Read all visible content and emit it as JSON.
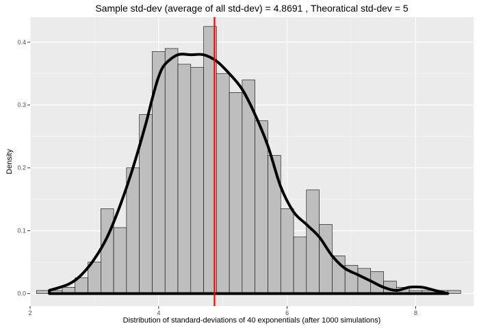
{
  "chart_data": {
    "type": "bar",
    "title": "Sample std-dev (average of all std-dev) =  4.8691 , Theoratical std-dev =  5",
    "xlabel": "Distribution of standard-deviations of 40 exponentials (after 1000 simulations)",
    "ylabel": "Density",
    "xlim": [
      2.0,
      8.9
    ],
    "ylim": [
      -0.02,
      0.44
    ],
    "x_ticks": [
      2,
      4,
      6,
      8
    ],
    "x_tick_labels": [
      "2",
      "4",
      "6",
      "8"
    ],
    "y_ticks": [
      0.0,
      0.1,
      0.2,
      0.3,
      0.4
    ],
    "y_tick_labels": [
      "0.0",
      "0.1",
      "0.2",
      "0.3",
      "0.4"
    ],
    "grid": true,
    "background": "#ebebeb",
    "bar_fill": "#bebebe",
    "bar_stroke": "#000000",
    "vline_color": "#ff0000",
    "curve_color": "#000000",
    "bin_width": 0.2,
    "bins": [
      {
        "x0": 2.1,
        "x1": 2.3,
        "density": 0.005
      },
      {
        "x0": 2.3,
        "x1": 2.5,
        "density": 0.005
      },
      {
        "x0": 2.5,
        "x1": 2.7,
        "density": 0.01
      },
      {
        "x0": 2.7,
        "x1": 2.9,
        "density": 0.025
      },
      {
        "x0": 2.9,
        "x1": 3.1,
        "density": 0.05
      },
      {
        "x0": 3.1,
        "x1": 3.3,
        "density": 0.135
      },
      {
        "x0": 3.3,
        "x1": 3.5,
        "density": 0.105
      },
      {
        "x0": 3.5,
        "x1": 3.7,
        "density": 0.2
      },
      {
        "x0": 3.7,
        "x1": 3.9,
        "density": 0.285
      },
      {
        "x0": 3.9,
        "x1": 4.1,
        "density": 0.385
      },
      {
        "x0": 4.1,
        "x1": 4.3,
        "density": 0.39
      },
      {
        "x0": 4.3,
        "x1": 4.5,
        "density": 0.365
      },
      {
        "x0": 4.5,
        "x1": 4.7,
        "density": 0.36
      },
      {
        "x0": 4.7,
        "x1": 4.9,
        "density": 0.425
      },
      {
        "x0": 4.9,
        "x1": 5.1,
        "density": 0.35
      },
      {
        "x0": 5.1,
        "x1": 5.3,
        "density": 0.32
      },
      {
        "x0": 5.3,
        "x1": 5.5,
        "density": 0.34
      },
      {
        "x0": 5.5,
        "x1": 5.7,
        "density": 0.275
      },
      {
        "x0": 5.7,
        "x1": 5.9,
        "density": 0.22
      },
      {
        "x0": 5.9,
        "x1": 6.1,
        "density": 0.135
      },
      {
        "x0": 6.1,
        "x1": 6.3,
        "density": 0.09
      },
      {
        "x0": 6.3,
        "x1": 6.5,
        "density": 0.165
      },
      {
        "x0": 6.5,
        "x1": 6.7,
        "density": 0.11
      },
      {
        "x0": 6.7,
        "x1": 6.9,
        "density": 0.06
      },
      {
        "x0": 6.9,
        "x1": 7.1,
        "density": 0.045
      },
      {
        "x0": 7.1,
        "x1": 7.3,
        "density": 0.04
      },
      {
        "x0": 7.3,
        "x1": 7.5,
        "density": 0.035
      },
      {
        "x0": 7.5,
        "x1": 7.7,
        "density": 0.02
      },
      {
        "x0": 7.7,
        "x1": 7.9,
        "density": 0.01
      },
      {
        "x0": 7.9,
        "x1": 8.1,
        "density": 0.005
      },
      {
        "x0": 8.1,
        "x1": 8.3,
        "density": 0.005
      },
      {
        "x0": 8.3,
        "x1": 8.5,
        "density": 0.005
      },
      {
        "x0": 8.5,
        "x1": 8.7,
        "density": 0.005
      }
    ],
    "density_curve": {
      "x": [
        2.3,
        2.6,
        2.8,
        3.0,
        3.2,
        3.4,
        3.6,
        3.8,
        3.9,
        4.0,
        4.1,
        4.3,
        4.5,
        4.7,
        4.9,
        5.1,
        5.3,
        5.5,
        5.7,
        5.9,
        6.1,
        6.3,
        6.5,
        6.7,
        6.9,
        7.1,
        7.3,
        7.5,
        7.7,
        7.9,
        8.1,
        8.3,
        8.5
      ],
      "y": [
        0.005,
        0.015,
        0.03,
        0.055,
        0.09,
        0.14,
        0.2,
        0.27,
        0.31,
        0.345,
        0.365,
        0.38,
        0.38,
        0.38,
        0.37,
        0.35,
        0.325,
        0.285,
        0.235,
        0.17,
        0.13,
        0.11,
        0.09,
        0.06,
        0.04,
        0.03,
        0.02,
        0.01,
        0.005,
        0.01,
        0.01,
        0.005,
        0.0
      ]
    },
    "vline": {
      "x": 4.8691
    }
  }
}
